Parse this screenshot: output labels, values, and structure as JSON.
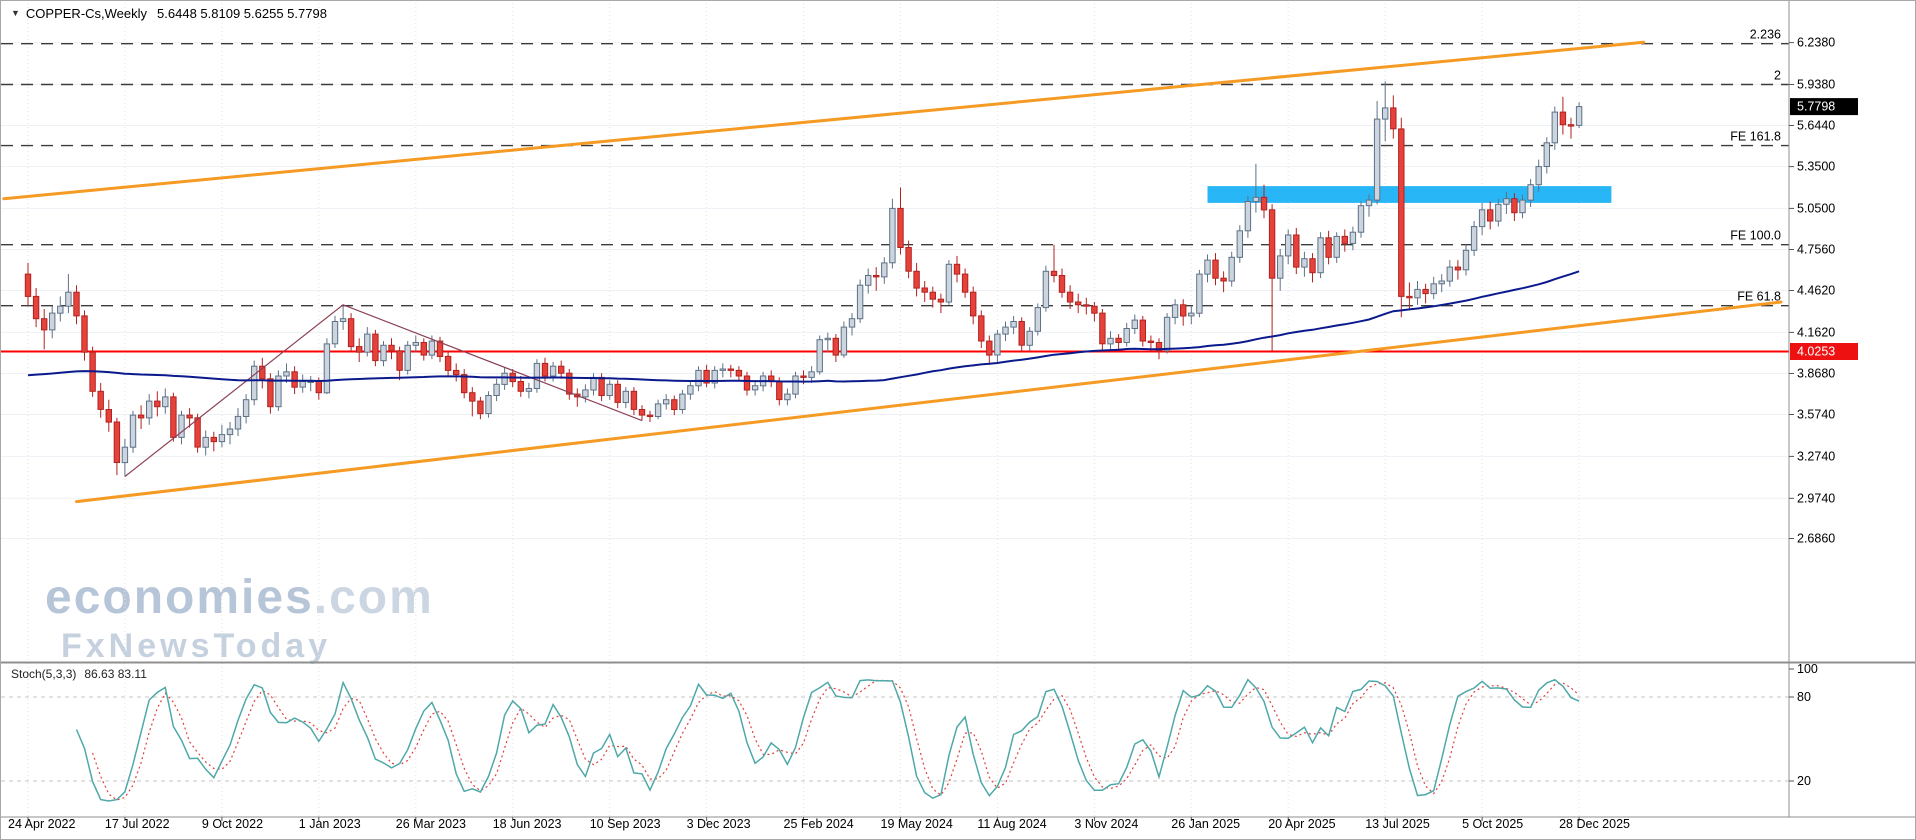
{
  "window": {
    "dropdown_icon": "▼",
    "symbol": "COPPER-Cs,Weekly",
    "ohlc_values": "5.6448 5.8109 5.6255 5.7798"
  },
  "watermark": {
    "name": "economies",
    "tld": ".com",
    "line2": "FxNewsToday"
  },
  "indicator": {
    "name": "Stoch(5,3,3)",
    "values": "86.63 83.11"
  },
  "price_axis": {
    "ticks": [
      "6.2380",
      "5.9380",
      "5.6440",
      "5.3500",
      "5.0500",
      "4.7560",
      "4.4620",
      "4.1620",
      "3.8680",
      "3.5740",
      "3.2740",
      "2.9740",
      "2.6860"
    ],
    "tick_values": [
      6.238,
      5.938,
      5.644,
      5.35,
      5.05,
      4.756,
      4.462,
      4.162,
      3.868,
      3.574,
      3.274,
      2.974,
      2.686
    ],
    "current_price_tag": "5.7798",
    "current_price_value": 5.7798,
    "support_tag": "4.0253",
    "support_value": 4.0253
  },
  "stoch_axis": {
    "labels": [
      "100",
      "80",
      "20"
    ],
    "values": [
      100,
      80,
      20
    ]
  },
  "x_axis": {
    "labels": [
      {
        "text": "24 Apr 2022",
        "index": 0
      },
      {
        "text": "17 Jul 2022",
        "index": 12
      },
      {
        "text": "9 Oct 2022",
        "index": 24
      },
      {
        "text": "1 Jan 2023",
        "index": 36
      },
      {
        "text": "26 Mar 2023",
        "index": 48
      },
      {
        "text": "18 Jun 2023",
        "index": 60
      },
      {
        "text": "10 Sep 2023",
        "index": 72
      },
      {
        "text": "3 Dec 2023",
        "index": 84
      },
      {
        "text": "25 Feb 2024",
        "index": 96
      },
      {
        "text": "19 May 2024",
        "index": 108
      },
      {
        "text": "11 Aug 2024",
        "index": 120
      },
      {
        "text": "3 Nov 2024",
        "index": 132
      },
      {
        "text": "26 Jan 2025",
        "index": 144
      },
      {
        "text": "20 Apr 2025",
        "index": 156
      },
      {
        "text": "13 Jul 2025",
        "index": 168
      },
      {
        "text": "5 Oct 2025",
        "index": 180
      },
      {
        "text": "28 Dec 2025",
        "index": 192
      }
    ]
  },
  "colors": {
    "bull_fill": "#ccd5de",
    "bull_stroke": "#5e7187",
    "bear_fill": "#e6423c",
    "bear_stroke": "#b2221e",
    "ma": "#0a1a8c",
    "trend": "#f59a23",
    "level": "#3c3c3c",
    "support": "#ff0000",
    "zone": "#29b6f6",
    "zigzag": "#8b4056",
    "stoch_main": "#4fa8a8",
    "stoch_signal": "#e04040",
    "grid_h": "#edf1f6",
    "grid_v": "#e3e3e3",
    "tag_bg": "#000000",
    "support_tag_bg": "#ee1111",
    "tag_text": "#ffffff"
  },
  "chart_data": {
    "type": "candlestick",
    "symbol": "COPPER-Cs",
    "timeframe": "Weekly",
    "start_date": "2022-04-24",
    "interval_days": 7,
    "ylim": [
      1.8,
      6.54
    ],
    "current": {
      "open": 5.6448,
      "high": 5.8109,
      "low": 5.6255,
      "close": 5.7798
    },
    "ohlc": [
      [
        4.58,
        4.66,
        4.35,
        4.42
      ],
      [
        4.42,
        4.48,
        4.2,
        4.26
      ],
      [
        4.26,
        4.33,
        4.04,
        4.18
      ],
      [
        4.18,
        4.35,
        4.12,
        4.3
      ],
      [
        4.3,
        4.42,
        4.24,
        4.35
      ],
      [
        4.35,
        4.58,
        4.3,
        4.45
      ],
      [
        4.45,
        4.5,
        4.22,
        4.28
      ],
      [
        4.28,
        4.32,
        3.96,
        4.02
      ],
      [
        4.02,
        4.06,
        3.7,
        3.74
      ],
      [
        3.74,
        3.8,
        3.55,
        3.61
      ],
      [
        3.61,
        3.68,
        3.45,
        3.52
      ],
      [
        3.52,
        3.55,
        3.14,
        3.23
      ],
      [
        3.23,
        3.4,
        3.13,
        3.34
      ],
      [
        3.34,
        3.6,
        3.3,
        3.57
      ],
      [
        3.57,
        3.64,
        3.47,
        3.55
      ],
      [
        3.55,
        3.72,
        3.5,
        3.67
      ],
      [
        3.67,
        3.74,
        3.56,
        3.63
      ],
      [
        3.63,
        3.76,
        3.58,
        3.7
      ],
      [
        3.7,
        3.73,
        3.38,
        3.41
      ],
      [
        3.41,
        3.6,
        3.36,
        3.57
      ],
      [
        3.57,
        3.62,
        3.48,
        3.55
      ],
      [
        3.55,
        3.58,
        3.3,
        3.34
      ],
      [
        3.34,
        3.46,
        3.28,
        3.41
      ],
      [
        3.41,
        3.45,
        3.31,
        3.38
      ],
      [
        3.38,
        3.5,
        3.34,
        3.43
      ],
      [
        3.43,
        3.52,
        3.36,
        3.47
      ],
      [
        3.47,
        3.62,
        3.42,
        3.56
      ],
      [
        3.56,
        3.72,
        3.51,
        3.68
      ],
      [
        3.68,
        3.96,
        3.64,
        3.92
      ],
      [
        3.92,
        3.98,
        3.76,
        3.83
      ],
      [
        3.83,
        3.87,
        3.58,
        3.63
      ],
      [
        3.63,
        3.89,
        3.6,
        3.85
      ],
      [
        3.85,
        3.94,
        3.8,
        3.88
      ],
      [
        3.88,
        3.92,
        3.72,
        3.77
      ],
      [
        3.77,
        3.86,
        3.73,
        3.81
      ],
      [
        3.81,
        3.85,
        3.74,
        3.81
      ],
      [
        3.81,
        3.84,
        3.68,
        3.73
      ],
      [
        3.73,
        4.12,
        3.72,
        4.08
      ],
      [
        4.08,
        4.28,
        4.05,
        4.24
      ],
      [
        4.24,
        4.35,
        4.18,
        4.26
      ],
      [
        4.26,
        4.3,
        4.02,
        4.06
      ],
      [
        4.06,
        4.12,
        3.95,
        4.02
      ],
      [
        4.02,
        4.2,
        3.99,
        4.15
      ],
      [
        4.15,
        4.18,
        3.92,
        3.96
      ],
      [
        3.96,
        4.1,
        3.92,
        4.07
      ],
      [
        4.07,
        4.12,
        3.97,
        4.03
      ],
      [
        4.03,
        4.06,
        3.82,
        3.89
      ],
      [
        3.89,
        4.1,
        3.86,
        4.07
      ],
      [
        4.07,
        4.14,
        4.02,
        4.09
      ],
      [
        4.09,
        4.12,
        3.96,
        4.0
      ],
      [
        4.0,
        4.14,
        3.97,
        4.1
      ],
      [
        4.1,
        4.13,
        3.95,
        3.99
      ],
      [
        3.99,
        4.03,
        3.85,
        3.89
      ],
      [
        3.89,
        3.94,
        3.81,
        3.86
      ],
      [
        3.86,
        3.9,
        3.69,
        3.73
      ],
      [
        3.73,
        3.77,
        3.56,
        3.67
      ],
      [
        3.67,
        3.7,
        3.54,
        3.58
      ],
      [
        3.58,
        3.74,
        3.55,
        3.71
      ],
      [
        3.71,
        3.83,
        3.67,
        3.79
      ],
      [
        3.79,
        3.91,
        3.75,
        3.87
      ],
      [
        3.87,
        3.9,
        3.77,
        3.81
      ],
      [
        3.81,
        3.85,
        3.7,
        3.74
      ],
      [
        3.74,
        3.8,
        3.69,
        3.76
      ],
      [
        3.76,
        3.97,
        3.73,
        3.94
      ],
      [
        3.94,
        3.98,
        3.81,
        3.85
      ],
      [
        3.85,
        3.95,
        3.81,
        3.92
      ],
      [
        3.92,
        3.96,
        3.83,
        3.87
      ],
      [
        3.87,
        3.9,
        3.68,
        3.72
      ],
      [
        3.72,
        3.76,
        3.63,
        3.7
      ],
      [
        3.7,
        3.79,
        3.66,
        3.75
      ],
      [
        3.75,
        3.87,
        3.71,
        3.84
      ],
      [
        3.84,
        3.87,
        3.67,
        3.71
      ],
      [
        3.71,
        3.82,
        3.68,
        3.79
      ],
      [
        3.79,
        3.82,
        3.62,
        3.66
      ],
      [
        3.66,
        3.77,
        3.62,
        3.74
      ],
      [
        3.74,
        3.77,
        3.57,
        3.61
      ],
      [
        3.61,
        3.64,
        3.53,
        3.57
      ],
      [
        3.57,
        3.6,
        3.52,
        3.56
      ],
      [
        3.56,
        3.68,
        3.54,
        3.65
      ],
      [
        3.65,
        3.72,
        3.61,
        3.68
      ],
      [
        3.68,
        3.71,
        3.57,
        3.61
      ],
      [
        3.61,
        3.75,
        3.58,
        3.72
      ],
      [
        3.72,
        3.81,
        3.68,
        3.78
      ],
      [
        3.78,
        3.92,
        3.74,
        3.89
      ],
      [
        3.89,
        3.93,
        3.77,
        3.8
      ],
      [
        3.8,
        3.92,
        3.76,
        3.89
      ],
      [
        3.89,
        3.94,
        3.84,
        3.9
      ],
      [
        3.9,
        3.93,
        3.84,
        3.89
      ],
      [
        3.89,
        3.92,
        3.81,
        3.85
      ],
      [
        3.85,
        3.88,
        3.71,
        3.75
      ],
      [
        3.75,
        3.82,
        3.71,
        3.78
      ],
      [
        3.78,
        3.88,
        3.74,
        3.85
      ],
      [
        3.85,
        3.89,
        3.77,
        3.81
      ],
      [
        3.81,
        3.84,
        3.64,
        3.68
      ],
      [
        3.68,
        3.76,
        3.64,
        3.72
      ],
      [
        3.72,
        3.88,
        3.69,
        3.85
      ],
      [
        3.85,
        3.89,
        3.79,
        3.84
      ],
      [
        3.84,
        3.92,
        3.8,
        3.88
      ],
      [
        3.88,
        4.14,
        3.86,
        4.11
      ],
      [
        4.11,
        4.16,
        4.02,
        4.12
      ],
      [
        4.12,
        4.15,
        3.95,
        4.0
      ],
      [
        4.0,
        4.24,
        3.98,
        4.2
      ],
      [
        4.2,
        4.3,
        4.14,
        4.26
      ],
      [
        4.26,
        4.54,
        4.23,
        4.5
      ],
      [
        4.5,
        4.62,
        4.44,
        4.57
      ],
      [
        4.57,
        4.63,
        4.46,
        4.56
      ],
      [
        4.56,
        4.7,
        4.51,
        4.66
      ],
      [
        4.66,
        5.12,
        4.62,
        5.05
      ],
      [
        5.05,
        5.2,
        4.72,
        4.77
      ],
      [
        4.77,
        4.82,
        4.55,
        4.6
      ],
      [
        4.6,
        4.66,
        4.42,
        4.48
      ],
      [
        4.48,
        4.53,
        4.38,
        4.45
      ],
      [
        4.45,
        4.49,
        4.34,
        4.4
      ],
      [
        4.4,
        4.44,
        4.3,
        4.38
      ],
      [
        4.38,
        4.68,
        4.36,
        4.65
      ],
      [
        4.65,
        4.71,
        4.52,
        4.58
      ],
      [
        4.58,
        4.62,
        4.41,
        4.45
      ],
      [
        4.45,
        4.49,
        4.22,
        4.28
      ],
      [
        4.28,
        4.32,
        4.05,
        4.1
      ],
      [
        4.1,
        4.14,
        3.93,
        4.0
      ],
      [
        4.0,
        4.18,
        3.95,
        4.15
      ],
      [
        4.15,
        4.24,
        4.1,
        4.2
      ],
      [
        4.2,
        4.28,
        4.15,
        4.24
      ],
      [
        4.24,
        4.27,
        4.02,
        4.07
      ],
      [
        4.07,
        4.2,
        4.03,
        4.17
      ],
      [
        4.17,
        4.37,
        4.14,
        4.34
      ],
      [
        4.34,
        4.64,
        4.31,
        4.6
      ],
      [
        4.6,
        4.79,
        4.52,
        4.57
      ],
      [
        4.57,
        4.62,
        4.41,
        4.45
      ],
      [
        4.45,
        4.5,
        4.33,
        4.38
      ],
      [
        4.38,
        4.44,
        4.3,
        4.36
      ],
      [
        4.36,
        4.41,
        4.29,
        4.35
      ],
      [
        4.35,
        4.38,
        4.24,
        4.3
      ],
      [
        4.3,
        4.33,
        4.02,
        4.08
      ],
      [
        4.08,
        4.17,
        4.03,
        4.12
      ],
      [
        4.12,
        4.15,
        4.04,
        4.09
      ],
      [
        4.09,
        4.23,
        4.06,
        4.19
      ],
      [
        4.19,
        4.29,
        4.15,
        4.25
      ],
      [
        4.25,
        4.28,
        4.06,
        4.1
      ],
      [
        4.1,
        4.14,
        4.03,
        4.09
      ],
      [
        4.09,
        4.12,
        3.97,
        4.03
      ],
      [
        4.03,
        4.3,
        4.01,
        4.27
      ],
      [
        4.27,
        4.4,
        4.22,
        4.36
      ],
      [
        4.36,
        4.4,
        4.21,
        4.28
      ],
      [
        4.28,
        4.35,
        4.22,
        4.3
      ],
      [
        4.3,
        4.61,
        4.27,
        4.58
      ],
      [
        4.58,
        4.72,
        4.52,
        4.68
      ],
      [
        4.68,
        4.73,
        4.5,
        4.55
      ],
      [
        4.55,
        4.6,
        4.45,
        4.53
      ],
      [
        4.53,
        4.74,
        4.49,
        4.7
      ],
      [
        4.7,
        4.93,
        4.66,
        4.89
      ],
      [
        4.89,
        5.14,
        4.84,
        5.1
      ],
      [
        5.1,
        5.37,
        5.02,
        5.13
      ],
      [
        5.13,
        5.22,
        4.98,
        5.04
      ],
      [
        5.04,
        5.08,
        4.03,
        4.55
      ],
      [
        4.55,
        4.76,
        4.46,
        4.71
      ],
      [
        4.71,
        4.9,
        4.65,
        4.86
      ],
      [
        4.86,
        4.91,
        4.58,
        4.63
      ],
      [
        4.63,
        4.74,
        4.56,
        4.69
      ],
      [
        4.69,
        4.73,
        4.52,
        4.59
      ],
      [
        4.59,
        4.88,
        4.55,
        4.84
      ],
      [
        4.84,
        4.89,
        4.65,
        4.7
      ],
      [
        4.7,
        4.88,
        4.66,
        4.85
      ],
      [
        4.85,
        4.9,
        4.74,
        4.8
      ],
      [
        4.8,
        4.92,
        4.75,
        4.88
      ],
      [
        4.88,
        5.1,
        4.84,
        5.07
      ],
      [
        5.07,
        5.15,
        4.99,
        5.11
      ],
      [
        5.11,
        5.82,
        5.08,
        5.69
      ],
      [
        5.69,
        5.96,
        5.53,
        5.77
      ],
      [
        5.77,
        5.86,
        5.55,
        5.62
      ],
      [
        5.62,
        5.7,
        4.27,
        4.42
      ],
      [
        4.42,
        4.52,
        4.33,
        4.41
      ],
      [
        4.41,
        4.53,
        4.36,
        4.47
      ],
      [
        4.47,
        4.51,
        4.37,
        4.44
      ],
      [
        4.44,
        4.56,
        4.4,
        4.51
      ],
      [
        4.51,
        4.58,
        4.45,
        4.53
      ],
      [
        4.53,
        4.68,
        4.49,
        4.63
      ],
      [
        4.63,
        4.68,
        4.54,
        4.61
      ],
      [
        4.61,
        4.79,
        4.57,
        4.75
      ],
      [
        4.75,
        4.96,
        4.71,
        4.92
      ],
      [
        4.92,
        5.09,
        4.86,
        5.04
      ],
      [
        5.04,
        5.1,
        4.9,
        4.96
      ],
      [
        4.96,
        5.12,
        4.92,
        5.08
      ],
      [
        5.08,
        5.17,
        5.01,
        5.12
      ],
      [
        5.12,
        5.16,
        4.96,
        5.02
      ],
      [
        5.02,
        5.15,
        4.98,
        5.11
      ],
      [
        5.11,
        5.26,
        5.06,
        5.22
      ],
      [
        5.22,
        5.4,
        5.17,
        5.35
      ],
      [
        5.35,
        5.56,
        5.3,
        5.52
      ],
      [
        5.52,
        5.78,
        5.47,
        5.74
      ],
      [
        5.74,
        5.85,
        5.58,
        5.65
      ],
      [
        5.65,
        5.7,
        5.55,
        5.64
      ],
      [
        5.6448,
        5.8109,
        5.6255,
        5.7798
      ]
    ],
    "fib_levels": [
      {
        "label": "2.236",
        "price": 6.23
      },
      {
        "label": "2",
        "price": 5.938
      },
      {
        "label": "FE 161.8",
        "price": 5.5
      },
      {
        "label": "FE 100.0",
        "price": 4.79
      },
      {
        "label": "FE 61.8",
        "price": 4.353
      }
    ],
    "support_line": 4.0253,
    "resistance_zone": {
      "start_index": 146,
      "end_index": 196,
      "price_low": 5.09,
      "price_high": 5.21
    },
    "trendlines": [
      {
        "name": "upper-channel",
        "x1_index": -3,
        "price1": 5.12,
        "x2_index": 200,
        "price2": 6.24
      },
      {
        "name": "lower-channel",
        "x1_index": 6,
        "price1": 2.95,
        "x2_index": 217,
        "price2": 4.38
      }
    ],
    "zigzag": [
      {
        "index": 12,
        "price": 3.13
      },
      {
        "index": 39,
        "price": 4.36
      },
      {
        "index": 76,
        "price": 3.53
      }
    ],
    "moving_average": {
      "type": "sma",
      "period": 100,
      "seed": 3.85
    },
    "stochastic": {
      "k_period": 5,
      "k_smoothing": 3,
      "d_period": 3,
      "range": [
        0,
        100
      ],
      "grid": [
        20,
        80
      ]
    }
  }
}
